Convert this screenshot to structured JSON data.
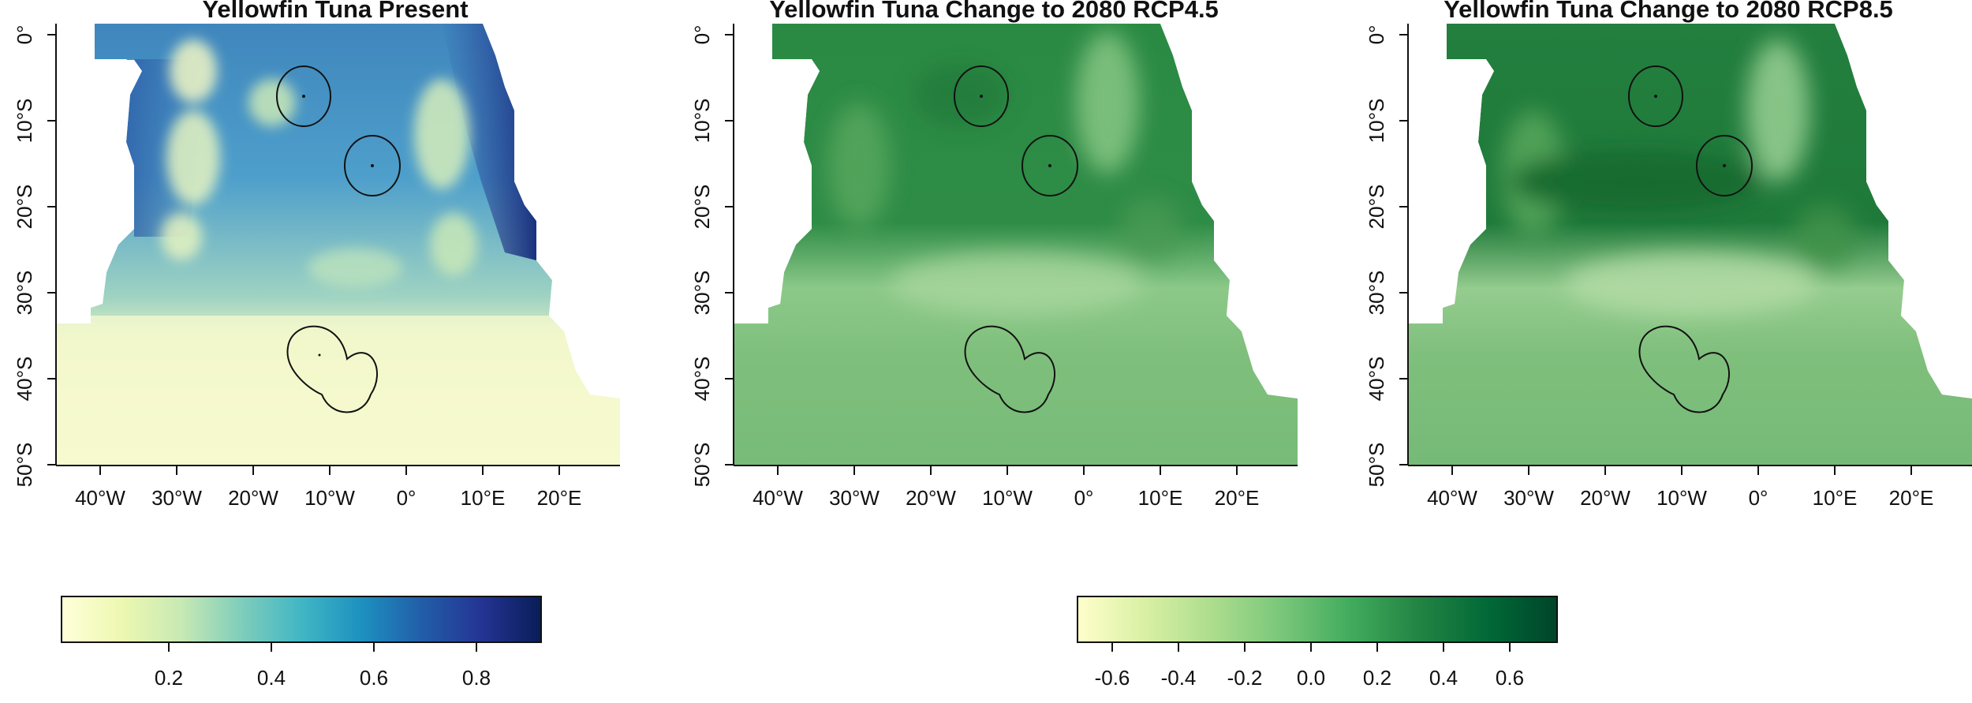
{
  "panels": [
    {
      "title": "Yellowfin Tuna Present",
      "palette": "YlGnBu",
      "lat_ticks": [
        "0°",
        "10°S",
        "20°S",
        "30°S",
        "40°S",
        "50°S"
      ],
      "lon_ticks": [
        "40°W",
        "30°W",
        "20°W",
        "10°W",
        "0°",
        "10°E",
        "20°E"
      ]
    },
    {
      "title": "Yellowfin Tuna Change to 2080 RCP4.5",
      "palette": "Greens",
      "lat_ticks": [
        "0°",
        "10°S",
        "20°S",
        "30°S",
        "40°S",
        "50°S"
      ],
      "lon_ticks": [
        "40°W",
        "30°W",
        "20°W",
        "10°W",
        "0°",
        "10°E",
        "20°E"
      ]
    },
    {
      "title": "Yellowfin Tuna Change to 2080 RCP8.5",
      "palette": "Greens",
      "lat_ticks": [
        "0°",
        "10°S",
        "20°S",
        "30°S",
        "40°S",
        "50°S"
      ],
      "lon_ticks": [
        "40°W",
        "30°W",
        "20°W",
        "10°W",
        "0°",
        "10°E",
        "20°E"
      ]
    }
  ],
  "legends": [
    {
      "ticks": [
        "0.2",
        "0.4",
        "0.6",
        "0.8"
      ],
      "colors": [
        "#ffffd9",
        "#edf8b1",
        "#c7e9b4",
        "#7fcdbb",
        "#41b6c4",
        "#1d91c0",
        "#225ea8",
        "#253494",
        "#081d58"
      ]
    },
    {
      "ticks": [
        "-0.6",
        "-0.4",
        "-0.2",
        "0.0",
        "0.2",
        "0.4",
        "0.6"
      ],
      "colors": [
        "#ffffcc",
        "#d9f0a3",
        "#addd8e",
        "#78c679",
        "#41ab5d",
        "#238443",
        "#006837",
        "#004529"
      ]
    }
  ],
  "colors": {
    "land": "#ffffff",
    "present_deep": "#1f4e9a",
    "present_mid": "#58a6c9",
    "present_light": "#f6f8cc",
    "change_dark": "#1f7a3a",
    "change_mid": "#4f9e57",
    "change_light": "#8fc98a",
    "outline": "#111111"
  }
}
